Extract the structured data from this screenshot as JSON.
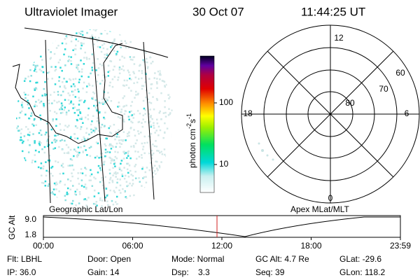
{
  "header": {
    "title": "Ultraviolet Imager",
    "date": "30 Oct 07",
    "time": "11:44:25 UT"
  },
  "colorbar": {
    "label": "photon cm",
    "exp1": "-2",
    "unit2": "s",
    "exp2": "-1",
    "ticks": [
      "100",
      "10"
    ]
  },
  "polar": {
    "mlt": [
      "12",
      "18",
      "6",
      "0"
    ],
    "lat": [
      "60",
      "70",
      "80"
    ]
  },
  "captions": {
    "left": "Geographic Lat/Lon",
    "right": "Apex MLat/MLT"
  },
  "timeline": {
    "ylabel": "GC Alt",
    "yticks": [
      "9.0",
      "1.8"
    ],
    "xticks": [
      "00:00",
      "06:00",
      "12:00",
      "18:00",
      "23:59"
    ]
  },
  "info": [
    [
      "Flt: LBHL",
      "Door: Open",
      "Mode: Normal",
      "GC Alt: 4.7 Re",
      "GLat: -29.6"
    ],
    [
      "IP: 36.0",
      "Gain: 14",
      "Dsp:    3.3",
      "Seq: 39",
      "GLon: 118.2"
    ]
  ]
}
